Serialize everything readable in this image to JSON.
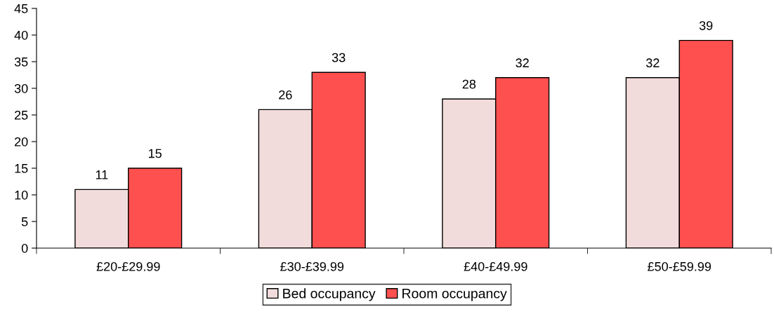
{
  "chart_data": {
    "type": "bar",
    "categories": [
      "£20-£29.99",
      "£30-£39.99",
      "£40-£49.99",
      "£50-£59.99"
    ],
    "series": [
      {
        "name": "Bed occupancy",
        "color": "#f2dcdb",
        "values": [
          11,
          26,
          28,
          32
        ]
      },
      {
        "name": "Room occupancy",
        "color": "#ff5050",
        "values": [
          15,
          33,
          32,
          39
        ]
      }
    ],
    "ylim": [
      0,
      45
    ],
    "yticks": [
      0,
      5,
      10,
      15,
      20,
      25,
      30,
      35,
      40,
      45
    ],
    "data_labels": true,
    "legend": "bottom",
    "grid": false
  }
}
